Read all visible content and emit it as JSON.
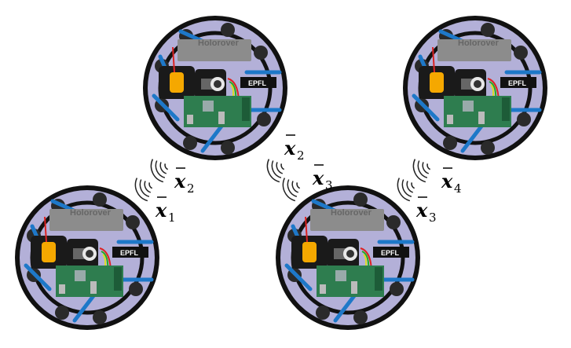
{
  "robots": [
    {
      "id": "robot-1",
      "brand_text": "Holorover",
      "logo_text": "EPFL"
    },
    {
      "id": "robot-2",
      "brand_text": "Holorover",
      "logo_text": "EPFL"
    },
    {
      "id": "robot-3",
      "brand_text": "Holorover",
      "logo_text": "EPFL"
    },
    {
      "id": "robot-4",
      "brand_text": "Holorover",
      "logo_text": "EPFL"
    }
  ],
  "state_labels": [
    {
      "symbol": "x",
      "sub": "1"
    },
    {
      "symbol": "x",
      "sub": "2"
    },
    {
      "symbol": "x",
      "sub": "2"
    },
    {
      "symbol": "x",
      "sub": "3"
    },
    {
      "symbol": "x",
      "sub": "3"
    },
    {
      "symbol": "x",
      "sub": "4"
    }
  ],
  "colors": {
    "disk_fill": "#b3b0d8",
    "ring": "#111111",
    "propeller": "#1e78c8",
    "pcb": "#2e7d4f",
    "battery": "#f5a800",
    "signal": "#222222"
  }
}
